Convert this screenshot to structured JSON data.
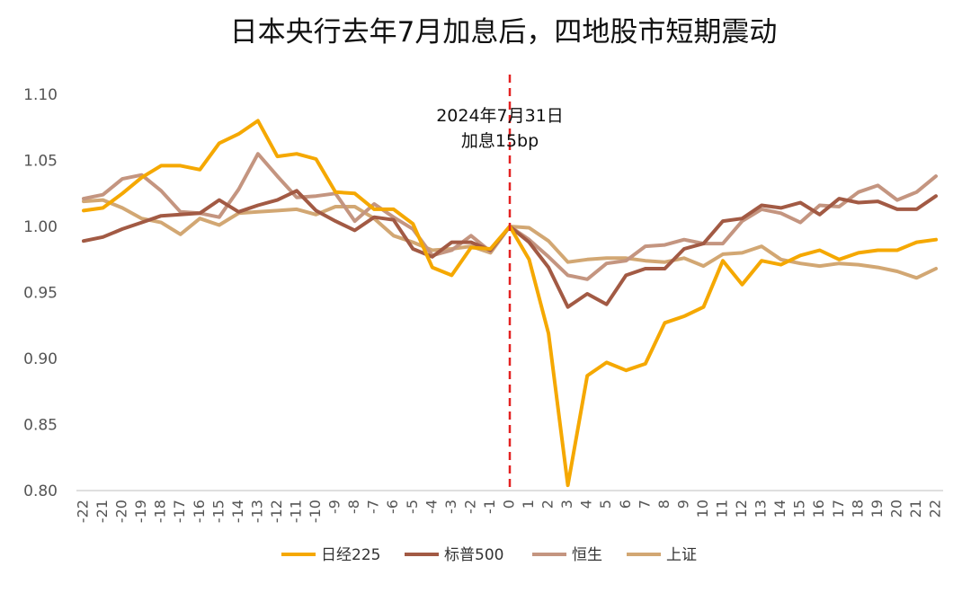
{
  "chart_data": {
    "type": "line",
    "title": "日本央行去年7月加息后，四地股市短期震动",
    "xlabel": "",
    "ylabel": "",
    "x": [
      -22,
      -21,
      -20,
      -19,
      -18,
      -17,
      -16,
      -15,
      -14,
      -13,
      -12,
      -11,
      -10,
      -9,
      -8,
      -7,
      -6,
      -5,
      -4,
      -3,
      -2,
      -1,
      0,
      1,
      2,
      3,
      4,
      5,
      6,
      7,
      8,
      9,
      10,
      11,
      12,
      13,
      14,
      15,
      16,
      17,
      18,
      19,
      20,
      21,
      22
    ],
    "x_tick_labels": [
      "-22",
      "-21",
      "-20",
      "-19",
      "-18",
      "-17",
      "-16",
      "-15",
      "-14",
      "-13",
      "-12",
      "-11",
      "-10",
      "-9",
      "-8",
      "-7",
      "-6",
      "-5",
      "-4",
      "-3",
      "-2",
      "-1",
      "0",
      "1",
      "2",
      "3",
      "4",
      "5",
      "6",
      "7",
      "8",
      "9",
      "10",
      "11",
      "12",
      "13",
      "14",
      "15",
      "16",
      "17",
      "18",
      "19",
      "20",
      "21",
      "22"
    ],
    "ylim": [
      0.8,
      1.1
    ],
    "y_ticks": [
      "0.80",
      "0.85",
      "0.90",
      "0.95",
      "1.00",
      "1.05",
      "1.10"
    ],
    "grid": false,
    "legend_position": "bottom",
    "annotation": {
      "x": 0,
      "line1": "2024年7月31日",
      "line2": "加息15bp",
      "line_color": "#e32222"
    },
    "series": [
      {
        "name": "日经225",
        "color": "#f5a800",
        "values": [
          1.012,
          1.014,
          1.025,
          1.037,
          1.046,
          1.046,
          1.043,
          1.063,
          1.07,
          1.08,
          1.053,
          1.055,
          1.051,
          1.026,
          1.025,
          1.013,
          1.013,
          1.002,
          0.969,
          0.963,
          0.984,
          0.983,
          1.0,
          0.975,
          0.919,
          0.804,
          0.887,
          0.897,
          0.891,
          0.896,
          0.927,
          0.932,
          0.939,
          0.974,
          0.956,
          0.974,
          0.971,
          0.978,
          0.982,
          0.975,
          0.98,
          0.982,
          0.982,
          0.988,
          0.99
        ]
      },
      {
        "name": "标普500",
        "color": "#a25a44",
        "values": [
          0.989,
          0.992,
          0.998,
          1.003,
          1.008,
          1.009,
          1.01,
          1.02,
          1.011,
          1.016,
          1.02,
          1.027,
          1.012,
          1.004,
          0.997,
          1.007,
          1.005,
          0.983,
          0.977,
          0.988,
          0.988,
          0.982,
          1.0,
          0.988,
          0.969,
          0.939,
          0.949,
          0.941,
          0.963,
          0.968,
          0.968,
          0.983,
          0.987,
          1.004,
          1.006,
          1.016,
          1.014,
          1.018,
          1.009,
          1.021,
          1.018,
          1.019,
          1.013,
          1.013,
          1.023
        ]
      },
      {
        "name": "恒生",
        "color": "#c49580",
        "values": [
          1.021,
          1.024,
          1.036,
          1.039,
          1.027,
          1.011,
          1.01,
          1.007,
          1.028,
          1.055,
          1.038,
          1.022,
          1.023,
          1.025,
          1.004,
          1.017,
          1.007,
          0.998,
          0.978,
          0.982,
          0.993,
          0.981,
          1.0,
          0.99,
          0.977,
          0.963,
          0.96,
          0.972,
          0.974,
          0.985,
          0.986,
          0.99,
          0.987,
          0.987,
          1.004,
          1.013,
          1.01,
          1.003,
          1.016,
          1.015,
          1.026,
          1.031,
          1.02,
          1.026,
          1.038
        ]
      },
      {
        "name": "上证",
        "color": "#d2a773",
        "values": [
          1.019,
          1.02,
          1.014,
          1.006,
          1.003,
          0.994,
          1.006,
          1.001,
          1.01,
          1.011,
          1.012,
          1.013,
          1.009,
          1.015,
          1.015,
          1.006,
          0.993,
          0.988,
          0.982,
          0.983,
          0.985,
          0.98,
          1.0,
          0.999,
          0.989,
          0.973,
          0.975,
          0.976,
          0.976,
          0.974,
          0.973,
          0.976,
          0.97,
          0.979,
          0.98,
          0.985,
          0.975,
          0.972,
          0.97,
          0.972,
          0.971,
          0.969,
          0.966,
          0.961,
          0.968
        ]
      }
    ]
  }
}
